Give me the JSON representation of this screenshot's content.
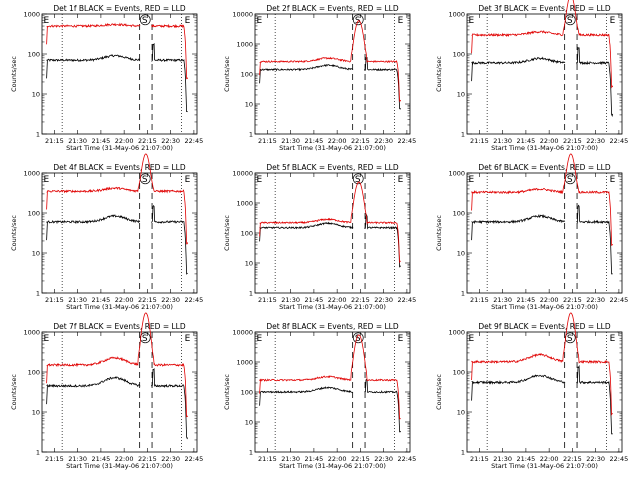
{
  "chart_data": [
    {
      "type": "line",
      "title": "Det 1f BLACK = Events, RED = LLD",
      "xlabel": "Start Time (31-May-06 21:07:00)",
      "ylabel": "Counts/sec",
      "yscale": "log",
      "ylim": [
        1,
        1000
      ],
      "x_ticks": [
        "21:15",
        "21:30",
        "21:45",
        "22:00",
        "22:15",
        "22:30",
        "22:45"
      ],
      "y_ticks": [
        "1",
        "10",
        "100",
        "1000"
      ],
      "markers": [
        "E",
        "S",
        "E"
      ],
      "series": [
        {
          "color": "#000000",
          "level": 70,
          "bump": 1.3,
          "flare": 0
        },
        {
          "color": "#e00000",
          "level": 500,
          "bump": 1.1,
          "flare": 0
        }
      ]
    },
    {
      "type": "line",
      "title": "Det 2f BLACK = Events, RED = LLD",
      "xlabel": "Start Time (31-May-06 21:07:00)",
      "ylabel": "Counts/sec",
      "yscale": "log",
      "ylim": [
        1,
        10000
      ],
      "x_ticks": [
        "21:15",
        "21:30",
        "21:45",
        "22:00",
        "22:15",
        "22:30",
        "22:45"
      ],
      "y_ticks": [
        "1",
        "10",
        "100",
        "1000",
        "10000"
      ],
      "markers": [
        "E",
        "S",
        "E"
      ],
      "series": [
        {
          "color": "#000000",
          "level": 140,
          "bump": 1.4,
          "flare": 0
        },
        {
          "color": "#e00000",
          "level": 260,
          "bump": 1.3,
          "flare": 6000
        }
      ]
    },
    {
      "type": "line",
      "title": "Det 3f BLACK = Events, RED = LLD",
      "xlabel": "Start Time (31-May-06 21:07:00)",
      "ylabel": "Counts/sec",
      "yscale": "log",
      "ylim": [
        1,
        1000
      ],
      "x_ticks": [
        "21:15",
        "21:30",
        "21:45",
        "22:00",
        "22:15",
        "22:30",
        "22:45"
      ],
      "y_ticks": [
        "1",
        "10",
        "100",
        "1000"
      ],
      "markers": [
        "E",
        "S",
        "E"
      ],
      "series": [
        {
          "color": "#000000",
          "level": 60,
          "bump": 1.3,
          "flare": 0
        },
        {
          "color": "#e00000",
          "level": 300,
          "bump": 1.2,
          "flare": 3000
        }
      ]
    },
    {
      "type": "line",
      "title": "Det 4f BLACK = Events, RED = LLD",
      "xlabel": "Start Time (31-May-06 21:07:00)",
      "ylabel": "Counts/sec",
      "yscale": "log",
      "ylim": [
        1,
        1000
      ],
      "x_ticks": [
        "21:15",
        "21:30",
        "21:45",
        "22:00",
        "22:15",
        "22:30",
        "22:45"
      ],
      "y_ticks": [
        "1",
        "10",
        "100",
        "1000"
      ],
      "markers": [
        "E",
        "S",
        "E"
      ],
      "series": [
        {
          "color": "#000000",
          "level": 60,
          "bump": 1.4,
          "flare": 0
        },
        {
          "color": "#e00000",
          "level": 350,
          "bump": 1.2,
          "flare": 3000
        }
      ]
    },
    {
      "type": "line",
      "title": "Det 5f BLACK = Events, RED = LLD",
      "xlabel": "Start Time (31-May-06 21:07:00)",
      "ylabel": "Counts/sec",
      "yscale": "log",
      "ylim": [
        1,
        10000
      ],
      "x_ticks": [
        "21:15",
        "21:30",
        "21:45",
        "22:00",
        "22:15",
        "22:30",
        "22:45"
      ],
      "y_ticks": [
        "1",
        "10",
        "100",
        "1000",
        "10000"
      ],
      "markers": [
        "E",
        "S",
        "E"
      ],
      "series": [
        {
          "color": "#000000",
          "level": 150,
          "bump": 1.4,
          "flare": 0
        },
        {
          "color": "#e00000",
          "level": 220,
          "bump": 1.3,
          "flare": 5000
        }
      ]
    },
    {
      "type": "line",
      "title": "Det 6f BLACK = Events, RED = LLD",
      "xlabel": "Start Time (31-May-06 21:07:00)",
      "ylabel": "Counts/sec",
      "yscale": "log",
      "ylim": [
        1,
        1000
      ],
      "x_ticks": [
        "21:15",
        "21:30",
        "21:45",
        "22:00",
        "22:15",
        "22:30",
        "22:45"
      ],
      "y_ticks": [
        "1",
        "10",
        "100",
        "1000"
      ],
      "markers": [
        "E",
        "S",
        "E"
      ],
      "series": [
        {
          "color": "#000000",
          "level": 60,
          "bump": 1.4,
          "flare": 0
        },
        {
          "color": "#e00000",
          "level": 330,
          "bump": 1.2,
          "flare": 3000
        }
      ]
    },
    {
      "type": "line",
      "title": "Det 7f BLACK = Events, RED = LLD",
      "xlabel": "Start Time (31-May-06 21:07:00)",
      "ylabel": "Counts/sec",
      "yscale": "log",
      "ylim": [
        1,
        1000
      ],
      "x_ticks": [
        "21:15",
        "21:30",
        "21:45",
        "22:00",
        "22:15",
        "22:30",
        "22:45"
      ],
      "y_ticks": [
        "1",
        "10",
        "100",
        "1000"
      ],
      "markers": [
        "E",
        "S",
        "E"
      ],
      "series": [
        {
          "color": "#000000",
          "level": 45,
          "bump": 1.6,
          "flare": 0
        },
        {
          "color": "#e00000",
          "level": 150,
          "bump": 1.5,
          "flare": 3000
        }
      ]
    },
    {
      "type": "line",
      "title": "Det 8f BLACK = Events, RED = LLD",
      "xlabel": "Start Time (31-May-06 21:07:00)",
      "ylabel": "Counts/sec",
      "yscale": "log",
      "ylim": [
        1,
        10000
      ],
      "x_ticks": [
        "21:15",
        "21:30",
        "21:45",
        "22:00",
        "22:15",
        "22:30",
        "22:45"
      ],
      "y_ticks": [
        "1",
        "10",
        "100",
        "1000",
        "10000"
      ],
      "markers": [
        "E",
        "S",
        "E"
      ],
      "series": [
        {
          "color": "#000000",
          "level": 100,
          "bump": 1.4,
          "flare": 0
        },
        {
          "color": "#e00000",
          "level": 250,
          "bump": 1.3,
          "flare": 8000
        }
      ]
    },
    {
      "type": "line",
      "title": "Det 9f BLACK = Events, RED = LLD",
      "xlabel": "Start Time (31-May-06 21:07:00)",
      "ylabel": "Counts/sec",
      "yscale": "log",
      "ylim": [
        1,
        1000
      ],
      "x_ticks": [
        "21:15",
        "21:30",
        "21:45",
        "22:00",
        "22:15",
        "22:30",
        "22:45"
      ],
      "y_ticks": [
        "1",
        "10",
        "100",
        "1000"
      ],
      "markers": [
        "E",
        "S",
        "E"
      ],
      "series": [
        {
          "color": "#000000",
          "level": 55,
          "bump": 1.5,
          "flare": 0
        },
        {
          "color": "#e00000",
          "level": 180,
          "bump": 1.5,
          "flare": 3000
        }
      ]
    }
  ]
}
